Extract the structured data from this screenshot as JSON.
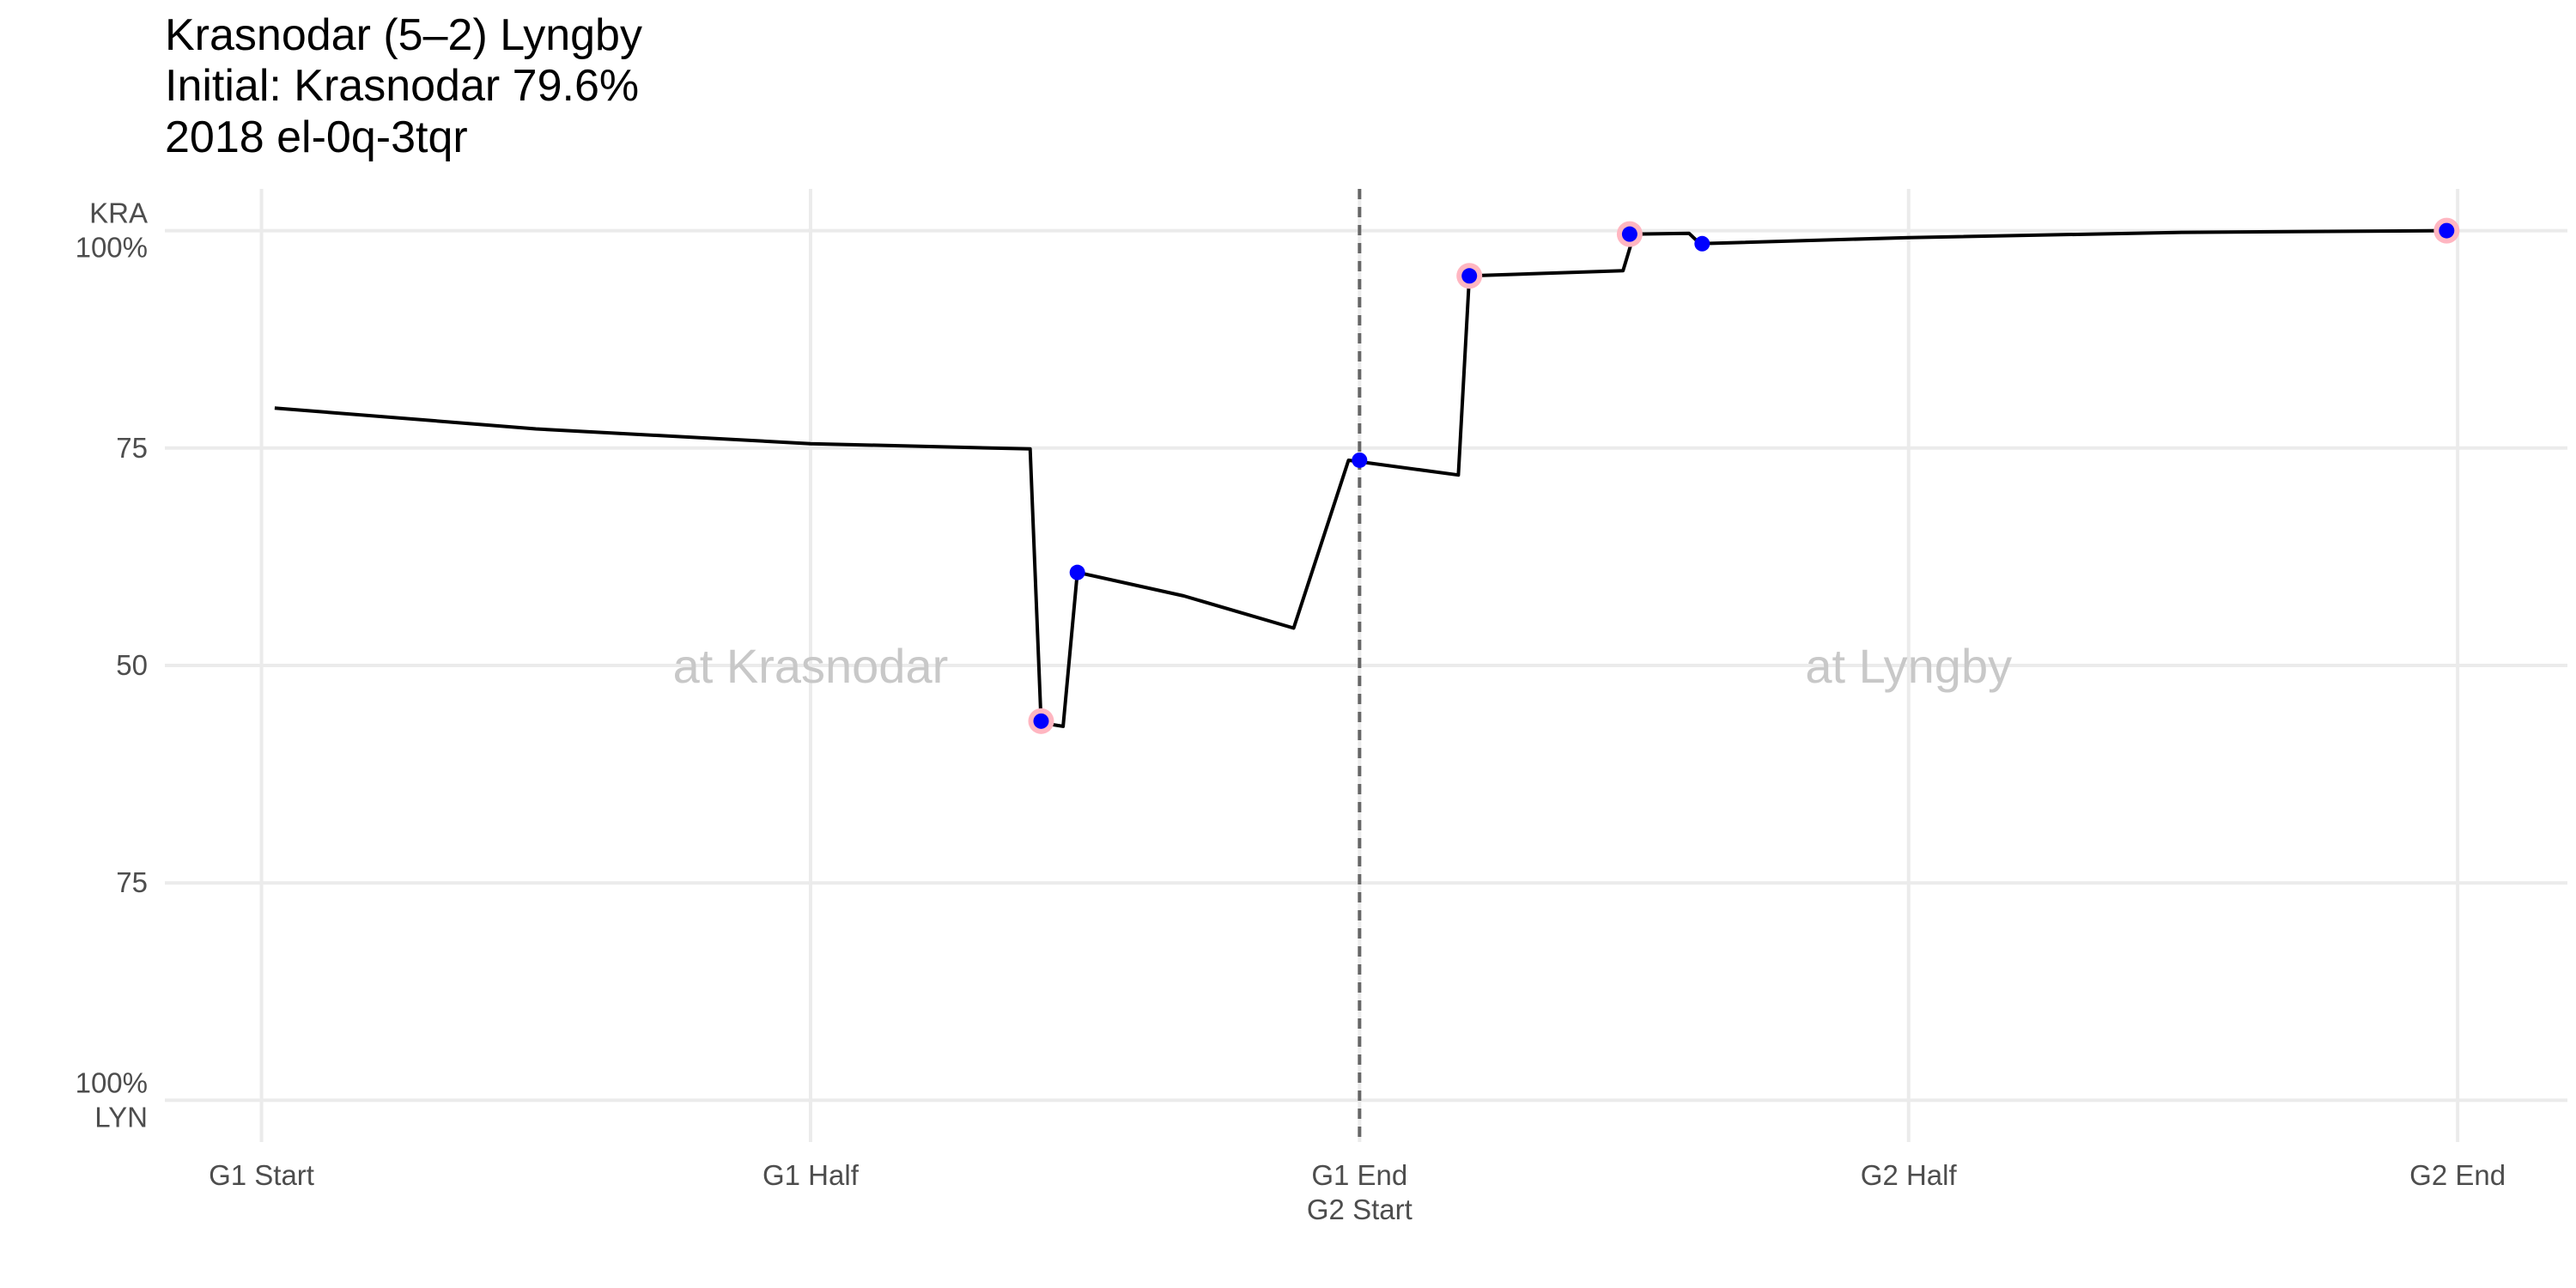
{
  "title_lines": [
    "Krasnodar (5–2) Lyngby",
    "Initial: Krasnodar 79.6%",
    "2018 el-0q-3tqr"
  ],
  "chart_data": {
    "type": "line",
    "x_ticks": [
      {
        "value": 0,
        "lines": [
          "G1 Start"
        ]
      },
      {
        "value": 0.5,
        "lines": [
          "G1 Half"
        ]
      },
      {
        "value": 1,
        "lines": [
          "G1 End",
          "G2 Start"
        ]
      },
      {
        "value": 1.5,
        "lines": [
          "G2 Half"
        ]
      },
      {
        "value": 2,
        "lines": [
          "G2 End"
        ]
      }
    ],
    "y_ticks": [
      {
        "value": 100,
        "lines": [
          "KRA",
          "100%"
        ]
      },
      {
        "value": 75,
        "lines": [
          "75"
        ]
      },
      {
        "value": 50,
        "lines": [
          "50"
        ]
      },
      {
        "value": 25,
        "lines": [
          "75"
        ]
      },
      {
        "value": 0,
        "lines": [
          "100%",
          "LYN"
        ]
      }
    ],
    "xlim": [
      -0.088,
      2.1
    ],
    "ylim": [
      -4.8,
      104.8
    ],
    "divider_x": 1,
    "annotations": [
      {
        "text": "at Krasnodar",
        "x": 0.5,
        "y": 50
      },
      {
        "text": "at Lyngby",
        "x": 1.5,
        "y": 50
      }
    ],
    "line_color": "#000000",
    "point_color": "#0000ff",
    "highlight_color": "#ffb6c1",
    "line": [
      [
        0.012,
        79.6
      ],
      [
        0.25,
        77.2
      ],
      [
        0.5,
        75.5
      ],
      [
        0.7,
        74.9
      ],
      [
        0.71,
        43.4
      ],
      [
        0.73,
        43.0
      ],
      [
        0.743,
        60.7
      ],
      [
        0.84,
        58.0
      ],
      [
        0.94,
        54.3
      ],
      [
        0.99,
        73.6
      ],
      [
        1.09,
        71.9
      ],
      [
        1.1,
        94.8
      ],
      [
        1.24,
        95.4
      ],
      [
        1.25,
        99.6
      ],
      [
        1.3,
        99.7
      ],
      [
        1.31,
        98.5
      ],
      [
        1.5,
        99.2
      ],
      [
        1.75,
        99.8
      ],
      [
        1.99,
        100
      ]
    ],
    "points": [
      {
        "x": 0.71,
        "y": 43.6,
        "highlight": true
      },
      {
        "x": 0.743,
        "y": 60.7,
        "highlight": false
      },
      {
        "x": 1.0,
        "y": 73.6,
        "highlight": false
      },
      {
        "x": 1.1,
        "y": 94.8,
        "highlight": true
      },
      {
        "x": 1.246,
        "y": 99.6,
        "highlight": true
      },
      {
        "x": 1.312,
        "y": 98.5,
        "highlight": false
      },
      {
        "x": 1.99,
        "y": 100,
        "highlight": true
      }
    ]
  }
}
